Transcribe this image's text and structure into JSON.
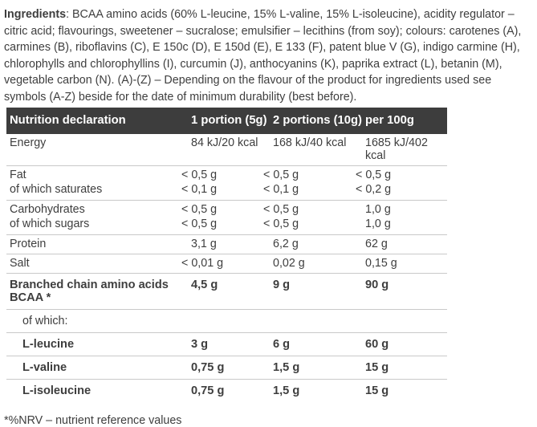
{
  "ingredients": {
    "label": "Ingredients",
    "text": ": BCAA amino acids (60% L-leucine, 15% L-valine, 15% L-isoleucine), acidity regulator – citric acid; flavourings, sweetener – sucralose; emulsifier – lecithins (from soy); colours: carotenes (A), carmines (B), riboflavins (C), E 150c (D), E 150d (E), E 133 (F), patent blue V (G), indigo carmine (H), chlorophylls and chlorophyllins (I), curcumin (J), anthocyanins (K), paprika extract (L), betanin (M), vegetable carbon (N). (A)-(Z) – Depending on the flavour of the product for ingredients used see symbols (A-Z) beside for the date of minimum durability (best before)."
  },
  "table": {
    "headers": {
      "label": "Nutrition declaration",
      "col1": "1 portion (5g)",
      "col2": "2 portions (10g)",
      "col3": "per 100g"
    },
    "rows": [
      {
        "label": "Energy",
        "v1": "84 kJ/20 kcal",
        "v2": "168 kJ/40 kcal",
        "v3": "1685 kJ/402 kcal"
      },
      {
        "label": "Fat",
        "v1": "< 0,5 g",
        "v2": "< 0,5 g",
        "v3": "< 0,5 g"
      },
      {
        "label": "of which saturates",
        "v1": "< 0,1 g",
        "v2": "< 0,1 g",
        "v3": "< 0,2 g"
      },
      {
        "label": "Carbohydrates",
        "v1": "< 0,5 g",
        "v2": "< 0,5 g",
        "v3": "1,0 g"
      },
      {
        "label": "of which sugars",
        "v1": "< 0,5 g",
        "v2": "< 0,5 g",
        "v3": "1,0 g"
      },
      {
        "label": "Protein",
        "v1": "3,1 g",
        "v2": "6,2 g",
        "v3": "62 g"
      },
      {
        "label": "Salt",
        "v1": "< 0,01 g",
        "v2": "0,02 g",
        "v3": "0,15 g"
      },
      {
        "label": "Branched chain amino acids BCAA *",
        "v1": "4,5 g",
        "v2": "9 g",
        "v3": "90 g"
      },
      {
        "label": "of which:",
        "v1": "",
        "v2": "",
        "v3": ""
      },
      {
        "label": "L-leucine",
        "v1": "3 g",
        "v2": "6 g",
        "v3": "60 g"
      },
      {
        "label": "L-valine",
        "v1": "0,75 g",
        "v2": "1,5 g",
        "v3": "15 g"
      },
      {
        "label": "L-isoleucine",
        "v1": "0,75 g",
        "v2": "1,5 g",
        "v3": "15 g"
      }
    ]
  },
  "footnote": "*%NRV – nutrient reference values",
  "colors": {
    "header_bg": "#3d3d3d",
    "header_text": "#ffffff",
    "body_text": "#3e3e3e",
    "divider": "#c9c9c9",
    "background": "#ffffff"
  }
}
